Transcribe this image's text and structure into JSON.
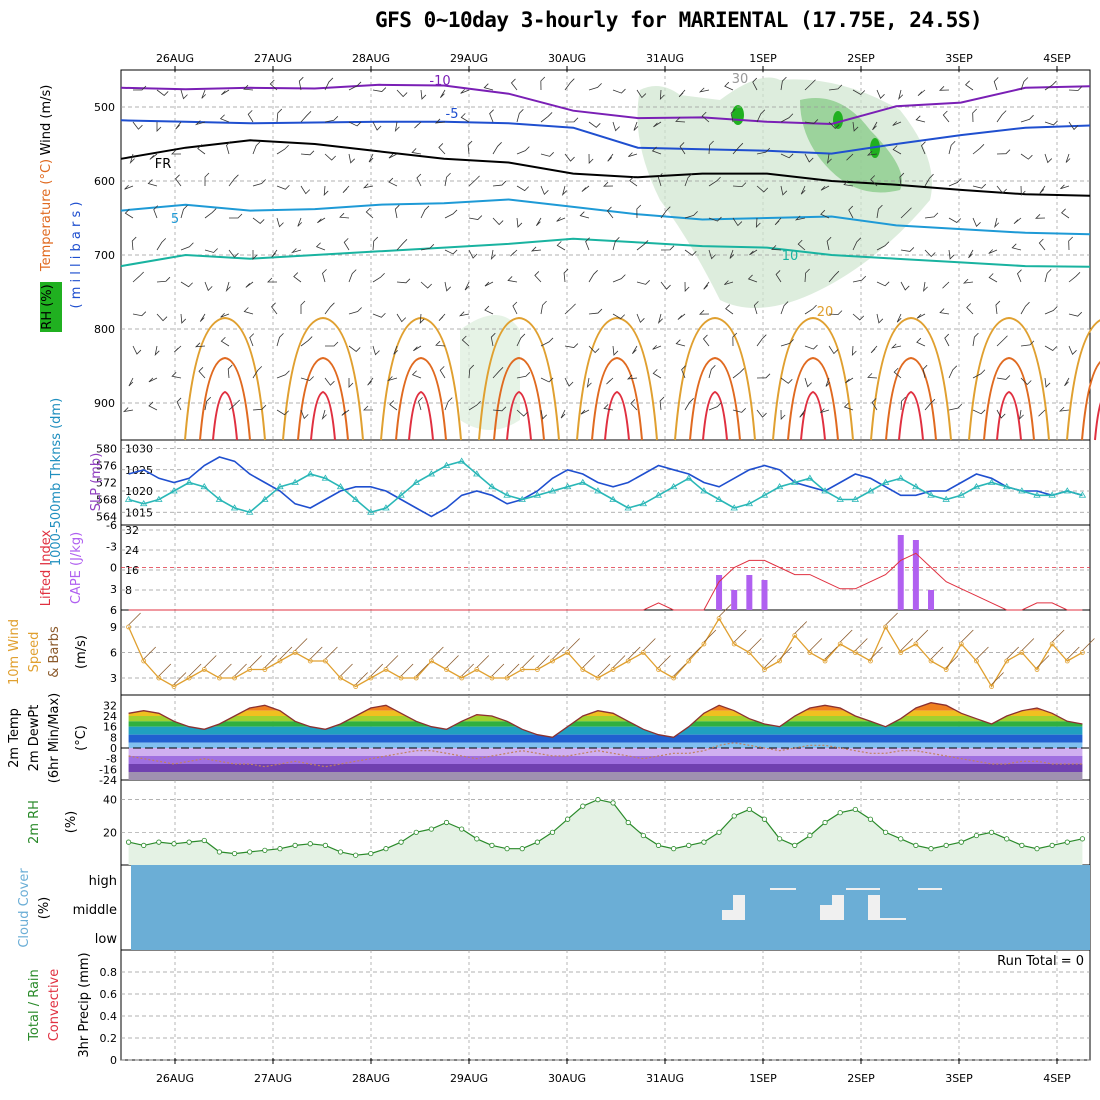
{
  "title": "GFS 0~10day 3-hourly for MARIENTAL (17.75E, 24.5S)",
  "colors": {
    "purple": "#7a1fb5",
    "blue": "#1f4fcf",
    "black": "#000000",
    "cyan": "#1e9ad6",
    "teal": "#19b3a0",
    "orange": "#e0a030",
    "red": "#e03040",
    "green": "#20b020",
    "brown": "#8b5a2b",
    "cloud_bg": "#6baed6",
    "seafoam": "#2ab7b7"
  },
  "chart_data": [
    {
      "panel": "upper_air",
      "type": "heatmap",
      "x_ticks": [
        "26AUG",
        "27AUG",
        "28AUG",
        "29AUG",
        "30AUG",
        "31AUG",
        "1SEP",
        "2SEP",
        "3SEP",
        "4SEP"
      ],
      "ylabel_parts": [
        "RH (%)",
        "Temperature (°C)",
        "Wind (m/s)"
      ],
      "ylabel_unit": "( m i l l i b a r s )",
      "y_ticks": [
        "500",
        "600",
        "700",
        "800",
        "900"
      ],
      "ylim": [
        950,
        450
      ],
      "contour_labels": [
        "-10",
        "-5",
        "FR",
        "5",
        "10",
        "20",
        "30"
      ],
      "isotherms": [
        {
          "label": "-10",
          "color": "#7a1fb5",
          "values": [
            474,
            476,
            474,
            475,
            470,
            471,
            482,
            505,
            515,
            514,
            520,
            523,
            499,
            494,
            474,
            472
          ]
        },
        {
          "label": "-5",
          "color": "#1f4fcf",
          "values": [
            518,
            520,
            522,
            521,
            520,
            520,
            522,
            528,
            555,
            557,
            559,
            563,
            550,
            538,
            528,
            525
          ]
        },
        {
          "label": "FR",
          "color": "#000000",
          "values": [
            570,
            555,
            545,
            550,
            560,
            570,
            575,
            590,
            595,
            590,
            590,
            600,
            605,
            612,
            618,
            620
          ]
        },
        {
          "label": "5",
          "color": "#1e9ad6",
          "values": [
            640,
            632,
            640,
            638,
            632,
            630,
            625,
            635,
            645,
            652,
            650,
            648,
            660,
            665,
            670,
            672
          ]
        },
        {
          "label": "10",
          "color": "#19b3a0",
          "values": [
            715,
            700,
            705,
            700,
            695,
            690,
            685,
            678,
            683,
            688,
            690,
            700,
            705,
            710,
            715,
            716
          ]
        }
      ]
    },
    {
      "panel": "thickness_slp",
      "type": "line",
      "y_ticks_left": [
        "564",
        "568",
        "572",
        "576",
        "580"
      ],
      "y_ticks_right": [
        "1015",
        "1020",
        "1025",
        "1030"
      ],
      "ylabel_left": "1000-500mb Thknss (dm)",
      "ylabel_right": "SLP (mb)",
      "series": [
        {
          "axis": "left",
          "values": [
            574,
            575,
            573,
            572,
            573,
            576,
            578,
            577,
            574,
            572,
            570,
            567,
            566,
            568,
            570,
            571,
            571,
            570,
            568,
            566,
            564,
            566,
            569,
            570,
            569,
            567,
            568,
            570,
            573,
            575,
            574,
            572,
            571,
            572,
            574,
            576,
            575,
            574,
            572,
            571,
            573,
            575,
            576,
            575,
            572,
            571,
            570,
            572,
            574,
            573,
            571,
            569,
            569,
            570,
            570,
            572,
            574,
            573,
            571,
            570,
            570,
            569,
            570,
            569
          ]
        },
        {
          "axis": "right",
          "values": [
            1018,
            1017,
            1018,
            1020,
            1022,
            1021,
            1018,
            1016,
            1015,
            1018,
            1021,
            1022,
            1024,
            1023,
            1021,
            1018,
            1015,
            1016,
            1019,
            1022,
            1024,
            1026,
            1027,
            1024,
            1021,
            1019,
            1018,
            1019,
            1020,
            1021,
            1022,
            1020,
            1018,
            1016,
            1017,
            1019,
            1021,
            1023,
            1020,
            1018,
            1016,
            1017,
            1019,
            1021,
            1022,
            1023,
            1020,
            1018,
            1018,
            1020,
            1022,
            1023,
            1021,
            1019,
            1018,
            1019,
            1021,
            1022,
            1021,
            1020,
            1019,
            1019,
            1020,
            1019
          ]
        }
      ]
    },
    {
      "panel": "instability",
      "type": "bar",
      "ylabel_left": "Lifted Index",
      "ylabel_right": "CAPE (J/kg)",
      "y_ticks_left": [
        "-6",
        "-3",
        "0",
        "3",
        "6"
      ],
      "y_ticks_right": [
        "8",
        "16",
        "24",
        "32"
      ],
      "cape_values": [
        0,
        0,
        0,
        0,
        0,
        0,
        0,
        0,
        0,
        0,
        0,
        0,
        0,
        0,
        0,
        0,
        0,
        0,
        0,
        0,
        0,
        0,
        0,
        0,
        0,
        0,
        0,
        0,
        0,
        0,
        0,
        0,
        0,
        0,
        0,
        0,
        0,
        0,
        0,
        14,
        8,
        14,
        12,
        0,
        0,
        0,
        0,
        0,
        0,
        0,
        0,
        30,
        28,
        8,
        0,
        0,
        0,
        0,
        0,
        0,
        0,
        0,
        0,
        0
      ],
      "lifted_index": [
        6,
        6,
        6,
        6,
        6,
        6,
        6,
        6,
        6,
        6,
        6,
        6,
        6,
        6,
        6,
        6,
        6,
        6,
        6,
        6,
        6,
        6,
        6,
        6,
        6,
        6,
        6,
        6,
        6,
        6,
        6,
        6,
        6,
        6,
        6,
        5,
        6,
        6,
        6,
        2,
        0,
        -1,
        -1,
        0,
        1,
        1,
        2,
        3,
        3,
        2,
        1,
        -1,
        -2,
        0,
        2,
        3,
        4,
        5,
        6,
        6,
        5,
        5,
        6,
        6
      ]
    },
    {
      "panel": "wind_10m",
      "type": "line",
      "ylabel_parts": [
        "10m Wind",
        "Speed",
        "& Barbs"
      ],
      "ylabel_unit": "(m/s)",
      "y_ticks": [
        "3",
        "6",
        "9"
      ],
      "values": [
        9,
        5,
        3,
        2,
        3,
        4,
        3,
        3,
        4,
        4,
        5,
        6,
        5,
        5,
        3,
        2,
        3,
        4,
        3,
        3,
        5,
        4,
        3,
        4,
        3,
        3,
        4,
        4,
        5,
        6,
        4,
        3,
        4,
        5,
        6,
        4,
        3,
        5,
        7,
        10,
        7,
        6,
        4,
        5,
        8,
        6,
        5,
        7,
        6,
        5,
        9,
        6,
        7,
        5,
        4,
        7,
        5,
        2,
        5,
        6,
        4,
        7,
        5,
        6
      ]
    },
    {
      "panel": "temp_2m",
      "type": "area",
      "ylabel_parts": [
        "2m Temp",
        "2m DewPt",
        "(6hr Min/Max)"
      ],
      "ylabel_unit": "(°C)",
      "y_ticks": [
        "32",
        "24",
        "16",
        "8",
        "0",
        "-8",
        "-16",
        "-24"
      ],
      "temp": [
        26,
        28,
        26,
        20,
        16,
        14,
        18,
        24,
        30,
        32,
        28,
        20,
        16,
        14,
        18,
        24,
        30,
        32,
        26,
        20,
        16,
        14,
        20,
        25,
        24,
        20,
        14,
        10,
        8,
        16,
        24,
        28,
        26,
        20,
        14,
        10,
        8,
        16,
        26,
        32,
        28,
        22,
        18,
        16,
        24,
        30,
        32,
        30,
        24,
        20,
        16,
        22,
        30,
        34,
        32,
        26,
        22,
        18,
        24,
        28,
        30,
        26,
        20,
        18
      ],
      "dewpt": [
        -6,
        -8,
        -10,
        -12,
        -10,
        -8,
        -10,
        -12,
        -12,
        -14,
        -12,
        -10,
        -12,
        -14,
        -12,
        -10,
        -8,
        -6,
        -4,
        -2,
        -2,
        -4,
        -6,
        -8,
        -6,
        -4,
        -2,
        -4,
        -6,
        -6,
        -4,
        -2,
        -4,
        -6,
        -8,
        -6,
        -4,
        -4,
        -2,
        2,
        4,
        2,
        0,
        -2,
        0,
        2,
        2,
        0,
        -2,
        -4,
        -4,
        -2,
        -2,
        -4,
        -6,
        -8,
        -10,
        -12,
        -12,
        -10,
        -10,
        -12,
        -12,
        -12
      ]
    },
    {
      "panel": "rh_2m",
      "type": "area",
      "ylabel": "2m RH",
      "ylabel_unit": "(%)",
      "y_ticks": [
        "20",
        "40"
      ],
      "values": [
        14,
        12,
        14,
        13,
        14,
        15,
        8,
        7,
        8,
        9,
        10,
        12,
        13,
        12,
        8,
        6,
        7,
        10,
        14,
        20,
        22,
        26,
        22,
        16,
        12,
        10,
        10,
        14,
        20,
        28,
        36,
        40,
        38,
        26,
        18,
        12,
        10,
        12,
        14,
        20,
        30,
        34,
        28,
        16,
        12,
        18,
        26,
        32,
        34,
        28,
        20,
        16,
        12,
        10,
        12,
        14,
        18,
        20,
        16,
        12,
        10,
        12,
        14,
        16
      ]
    },
    {
      "panel": "cloud_cover",
      "type": "heatmap",
      "ylabel": "Cloud Cover",
      "ylabel_unit": "(%)",
      "levels": [
        "high",
        "middle",
        "low"
      ]
    },
    {
      "panel": "precip",
      "type": "bar",
      "ylabel_parts": [
        "Total / Rain",
        "Convective"
      ],
      "ylabel_unit": "3hr Precip (mm)",
      "y_ticks": [
        "0",
        "0.2",
        "0.4",
        "0.6",
        "0.8"
      ],
      "ylim": [
        0,
        1
      ],
      "run_total": "Run Total = 0",
      "values": []
    }
  ]
}
